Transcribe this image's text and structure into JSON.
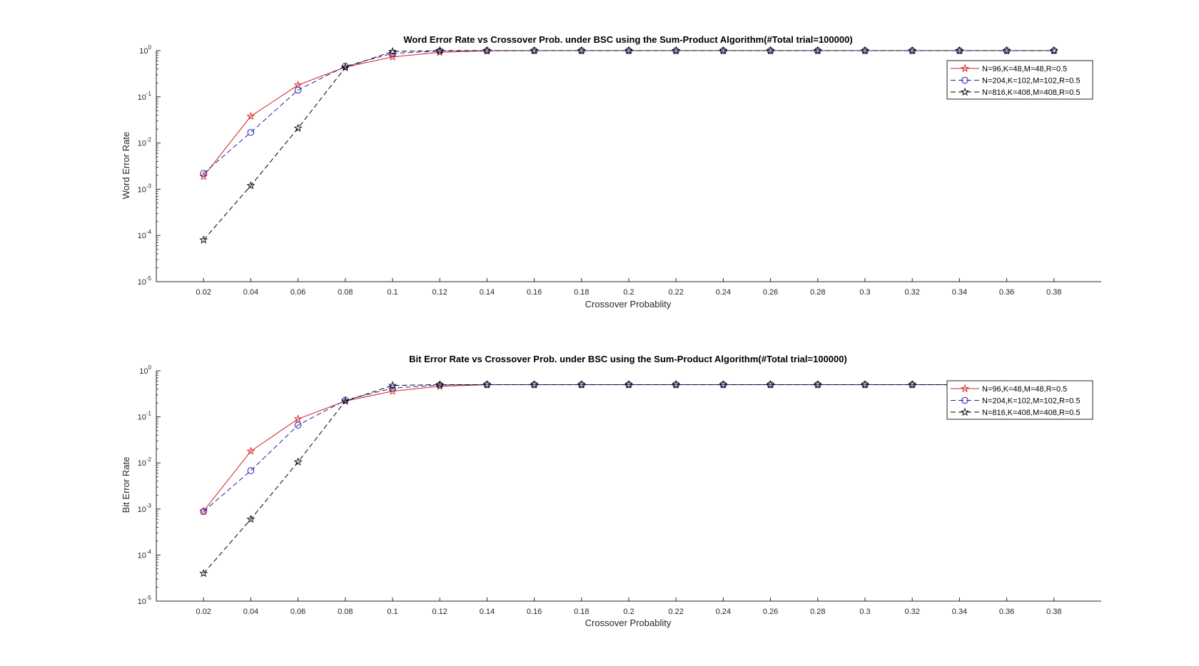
{
  "chart_data": [
    {
      "type": "line",
      "title": "Word Error Rate vs Crossover Prob. under BSC using the Sum-Product Algorithm(#Total trial=100000)",
      "xlabel": "Crossover Probablity",
      "ylabel": "Word Error Rate",
      "yscale": "log",
      "xlim": [
        0,
        0.4
      ],
      "ylim": [
        1e-05,
        1
      ],
      "xticks": [
        "0.02",
        "0.04",
        "0.06",
        "0.08",
        "0.1",
        "0.12",
        "0.14",
        "0.16",
        "0.18",
        "0.2",
        "0.22",
        "0.24",
        "0.26",
        "0.28",
        "0.3",
        "0.32",
        "0.34",
        "0.36",
        "0.38"
      ],
      "yticks": [
        {
          "base": "10",
          "exp": "-5"
        },
        {
          "base": "10",
          "exp": "-4"
        },
        {
          "base": "10",
          "exp": "-3"
        },
        {
          "base": "10",
          "exp": "-2"
        },
        {
          "base": "10",
          "exp": "-1"
        },
        {
          "base": "10",
          "exp": "0"
        }
      ],
      "legend_position": "top-right",
      "x": [
        0.02,
        0.04,
        0.06,
        0.08,
        0.1,
        0.12,
        0.14,
        0.16,
        0.18,
        0.2,
        0.22,
        0.24,
        0.26,
        0.28,
        0.3,
        0.32,
        0.34,
        0.36,
        0.38
      ],
      "series": [
        {
          "name": "N=96,K=48,M=48,R=0.5",
          "color": "#d62020",
          "dash": "solid",
          "marker": "star",
          "values": [
            0.0019,
            0.038,
            0.18,
            0.44,
            0.73,
            0.92,
            0.99,
            1,
            1,
            1,
            1,
            1,
            1,
            1,
            1,
            1,
            1,
            1,
            1
          ]
        },
        {
          "name": "N=204,K=102,M=102,R=0.5",
          "color": "#1f1fa8",
          "dash": "dashed",
          "marker": "circle",
          "values": [
            0.0022,
            0.017,
            0.14,
            0.46,
            0.87,
            0.98,
            1,
            1,
            1,
            1,
            1,
            1,
            1,
            1,
            1,
            1,
            1,
            1,
            1
          ]
        },
        {
          "name": "N=816,K=408,M=408,R=0.5",
          "color": "#000000",
          "dash": "dashed",
          "marker": "star",
          "values": [
            8e-05,
            0.0012,
            0.021,
            0.43,
            0.96,
            1,
            1,
            1,
            1,
            1,
            1,
            1,
            1,
            1,
            1,
            1,
            1,
            1,
            1
          ]
        }
      ]
    },
    {
      "type": "line",
      "title": "Bit Error Rate vs Crossover Prob. under BSC using the Sum-Product Algorithm(#Total trial=100000)",
      "xlabel": "Crossover Probablity",
      "ylabel": "Bit Error Rate",
      "yscale": "log",
      "xlim": [
        0,
        0.4
      ],
      "ylim": [
        1e-05,
        1
      ],
      "xticks": [
        "0.02",
        "0.04",
        "0.06",
        "0.08",
        "0.1",
        "0.12",
        "0.14",
        "0.16",
        "0.18",
        "0.2",
        "0.22",
        "0.24",
        "0.26",
        "0.28",
        "0.3",
        "0.32",
        "0.34",
        "0.36",
        "0.38"
      ],
      "yticks": [
        {
          "base": "10",
          "exp": "-5"
        },
        {
          "base": "10",
          "exp": "-4"
        },
        {
          "base": "10",
          "exp": "-3"
        },
        {
          "base": "10",
          "exp": "-2"
        },
        {
          "base": "10",
          "exp": "-1"
        },
        {
          "base": "10",
          "exp": "0"
        }
      ],
      "legend_position": "top-right",
      "x": [
        0.02,
        0.04,
        0.06,
        0.08,
        0.1,
        0.12,
        0.14,
        0.16,
        0.18,
        0.2,
        0.22,
        0.24,
        0.26,
        0.28,
        0.3,
        0.32,
        0.34,
        0.36,
        0.38
      ],
      "series": [
        {
          "name": "N=96,K=48,M=48,R=0.5",
          "color": "#d62020",
          "dash": "solid",
          "marker": "star",
          "values": [
            0.0009,
            0.018,
            0.09,
            0.22,
            0.36,
            0.46,
            0.5,
            0.5,
            0.5,
            0.5,
            0.5,
            0.5,
            0.5,
            0.5,
            0.5,
            0.5,
            0.5,
            0.5,
            0.5
          ]
        },
        {
          "name": "N=204,K=102,M=102,R=0.5",
          "color": "#1f1fa8",
          "dash": "dashed",
          "marker": "circle",
          "values": [
            0.00088,
            0.0068,
            0.066,
            0.23,
            0.42,
            0.49,
            0.5,
            0.5,
            0.5,
            0.5,
            0.5,
            0.5,
            0.5,
            0.5,
            0.5,
            0.5,
            0.5,
            0.5,
            0.5
          ]
        },
        {
          "name": "N=816,K=408,M=408,R=0.5",
          "color": "#000000",
          "dash": "dashed",
          "marker": "star",
          "values": [
            4e-05,
            0.0006,
            0.0105,
            0.22,
            0.48,
            0.5,
            0.5,
            0.5,
            0.5,
            0.5,
            0.5,
            0.5,
            0.5,
            0.5,
            0.5,
            0.5,
            0.5,
            0.5,
            0.5
          ]
        }
      ]
    }
  ]
}
